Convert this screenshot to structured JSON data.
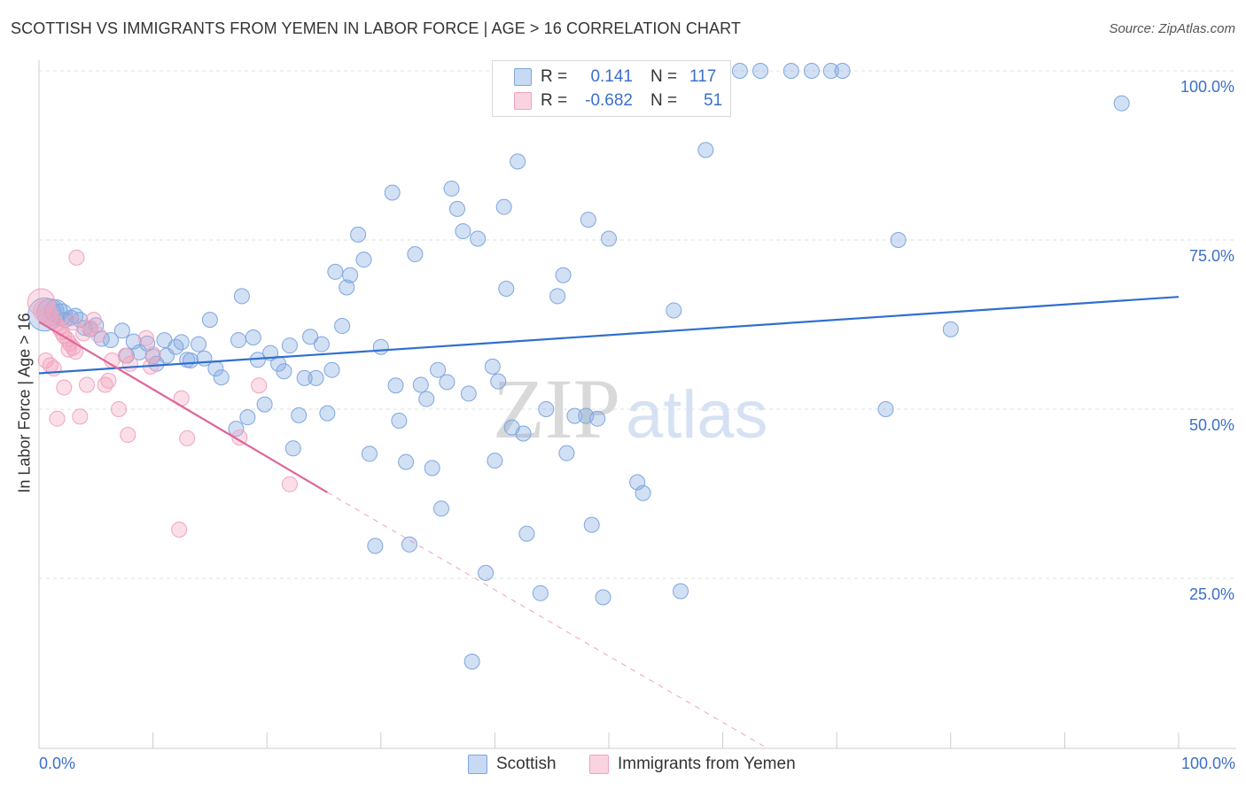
{
  "title": "SCOTTISH VS IMMIGRANTS FROM YEMEN IN LABOR FORCE | AGE > 16 CORRELATION CHART",
  "source": "Source: ZipAtlas.com",
  "watermark": {
    "zip": "ZIP",
    "atlas": "atlas"
  },
  "legend": {
    "rows": [
      {
        "r_label": "R =",
        "r_value": "0.141",
        "n_label": "N =",
        "n_value": "117"
      },
      {
        "r_label": "R =",
        "r_value": "-0.682",
        "n_label": "N =",
        "n_value": "51"
      }
    ]
  },
  "bottom_legend": [
    "Scottish",
    "Immigrants from Yemen"
  ],
  "chart_data": {
    "type": "scatter",
    "title": "SCOTTISH VS IMMIGRANTS FROM YEMEN IN LABOR FORCE | AGE > 16 CORRELATION CHART",
    "xlabel": "",
    "ylabel": "In Labor Force | Age > 16",
    "xlim": [
      0,
      100
    ],
    "ylim": [
      0,
      105
    ],
    "x_tick_labels": [
      "0.0%",
      "100.0%"
    ],
    "y_ticks": [
      25,
      50,
      75,
      100
    ],
    "y_tick_labels": [
      "25.0%",
      "50.0%",
      "75.0%",
      "100.0%"
    ],
    "grid": true,
    "legend_position": "top-center",
    "colors": {
      "scottish": "#7ea6e0",
      "scottish_line": "#2f6fcf",
      "yemen": "#f2a3bd",
      "yemen_line": "#e0659a",
      "tick_text": "#3b6fc9"
    },
    "series": [
      {
        "name": "Scottish",
        "r": 0.141,
        "n": 117,
        "trend": {
          "x": [
            0,
            100
          ],
          "y": [
            55.3,
            66.6
          ]
        },
        "points": [
          [
            0.5,
            64,
            2.2
          ],
          [
            1,
            64.3,
            1.8
          ],
          [
            1.5,
            64.5,
            1.5
          ],
          [
            2,
            64,
            1.4
          ],
          [
            2.3,
            63.2,
            1
          ],
          [
            2.8,
            63.5,
            1
          ],
          [
            3.2,
            63.8,
            1
          ],
          [
            3.6,
            63.2,
            1
          ],
          [
            4,
            62,
            1
          ],
          [
            4.5,
            61.8,
            1
          ],
          [
            5,
            62.4,
            1
          ],
          [
            5.5,
            60.4,
            1
          ],
          [
            6.3,
            60.2,
            1
          ],
          [
            7.3,
            61.6,
            1
          ],
          [
            7.7,
            57.9,
            1
          ],
          [
            8.3,
            60.0,
            1
          ],
          [
            8.8,
            58.4,
            1
          ],
          [
            9.5,
            59.7,
            1
          ],
          [
            10,
            57.8,
            1
          ],
          [
            10.3,
            56.7,
            1
          ],
          [
            11,
            60.2,
            1
          ],
          [
            11.2,
            57.9,
            1
          ],
          [
            12,
            59.2,
            1
          ],
          [
            12.5,
            59.9,
            1
          ],
          [
            13,
            57.3,
            1
          ],
          [
            13.3,
            57.2,
            1
          ],
          [
            14,
            59.6,
            1
          ],
          [
            14.5,
            57.5,
            1
          ],
          [
            15,
            63.2,
            1
          ],
          [
            15.5,
            56.0,
            1
          ],
          [
            16,
            54.7,
            1
          ],
          [
            17.3,
            47.1,
            1
          ],
          [
            17.5,
            60.2,
            1
          ],
          [
            17.8,
            66.7,
            1
          ],
          [
            18.3,
            48.8,
            1
          ],
          [
            18.8,
            60.6,
            1
          ],
          [
            19.2,
            57.3,
            1
          ],
          [
            19.8,
            50.7,
            1
          ],
          [
            20.3,
            58.3,
            1
          ],
          [
            21,
            56.7,
            1
          ],
          [
            21.5,
            55.6,
            1
          ],
          [
            22,
            59.4,
            1
          ],
          [
            22.3,
            44.2,
            1
          ],
          [
            22.8,
            49.1,
            1
          ],
          [
            23.3,
            54.6,
            1
          ],
          [
            23.8,
            60.7,
            1
          ],
          [
            24.3,
            54.6,
            1
          ],
          [
            24.8,
            59.6,
            1
          ],
          [
            25.3,
            49.4,
            1
          ],
          [
            25.7,
            55.8,
            1
          ],
          [
            26,
            70.3,
            1
          ],
          [
            26.6,
            62.3,
            1
          ],
          [
            27,
            68.0,
            1
          ],
          [
            27.3,
            69.8,
            1
          ],
          [
            28,
            75.8,
            1
          ],
          [
            28.5,
            72.1,
            1
          ],
          [
            29,
            43.4,
            1
          ],
          [
            29.5,
            29.8,
            1
          ],
          [
            30,
            59.2,
            1
          ],
          [
            31,
            82.0,
            1
          ],
          [
            31.3,
            53.5,
            1
          ],
          [
            31.6,
            48.3,
            1
          ],
          [
            32.2,
            42.2,
            1
          ],
          [
            32.5,
            30.0,
            1
          ],
          [
            33,
            72.9,
            1
          ],
          [
            33.5,
            53.6,
            1
          ],
          [
            34,
            51.5,
            1
          ],
          [
            34.5,
            41.3,
            1
          ],
          [
            35,
            55.8,
            1
          ],
          [
            35.3,
            35.3,
            1
          ],
          [
            35.8,
            54.0,
            1
          ],
          [
            36.2,
            82.6,
            1
          ],
          [
            36.7,
            79.6,
            1
          ],
          [
            37.2,
            76.3,
            1
          ],
          [
            37.7,
            52.3,
            1
          ],
          [
            38,
            12.7,
            1
          ],
          [
            38.5,
            75.2,
            1
          ],
          [
            39.2,
            25.8,
            1
          ],
          [
            39.8,
            56.3,
            1
          ],
          [
            40,
            42.4,
            1
          ],
          [
            40.3,
            54.1,
            1
          ],
          [
            40.8,
            79.9,
            1
          ],
          [
            41,
            67.8,
            1
          ],
          [
            41.5,
            47.3,
            1
          ],
          [
            42,
            86.6,
            1
          ],
          [
            42.5,
            46.4,
            1
          ],
          [
            42.8,
            31.6,
            1
          ],
          [
            44,
            22.8,
            1
          ],
          [
            44.5,
            50.0,
            1
          ],
          [
            45.5,
            66.7,
            1
          ],
          [
            46,
            69.8,
            1
          ],
          [
            46.3,
            43.5,
            1
          ],
          [
            47,
            49.0,
            1
          ],
          [
            48,
            49.0,
            1
          ],
          [
            48.2,
            78.0,
            1
          ],
          [
            48.5,
            32.9,
            1
          ],
          [
            49,
            48.6,
            1
          ],
          [
            49.5,
            22.2,
            1
          ],
          [
            50,
            75.2,
            1
          ],
          [
            52.5,
            39.2,
            1
          ],
          [
            53,
            37.6,
            1
          ],
          [
            53.8,
            100.0,
            1
          ],
          [
            55.7,
            64.6,
            1
          ],
          [
            56.3,
            23.1,
            1
          ],
          [
            58.5,
            88.3,
            1
          ],
          [
            61.5,
            100.0,
            1
          ],
          [
            63.3,
            100.0,
            1
          ],
          [
            66,
            100.0,
            1
          ],
          [
            67.8,
            100.0,
            1
          ],
          [
            69.5,
            100.0,
            1
          ],
          [
            70.5,
            100.0,
            1
          ],
          [
            74.3,
            50.0,
            1
          ],
          [
            75.4,
            75.0,
            1
          ],
          [
            80,
            61.8,
            1
          ],
          [
            95,
            95.2,
            1
          ]
        ]
      },
      {
        "name": "Immigrants from Yemen",
        "r": -0.682,
        "n": 51,
        "trend": {
          "x": [
            0,
            25.3
          ],
          "y": [
            62.9,
            37.7
          ],
          "dashed_to": {
            "x": 63.8,
            "y": 0
          }
        },
        "points": [
          [
            0.2,
            65.8,
            1.8
          ],
          [
            0.5,
            64.5,
            1.5
          ],
          [
            0.8,
            63.8,
            1.3
          ],
          [
            1.2,
            63.2,
            1.2
          ],
          [
            1.5,
            62.6,
            1
          ],
          [
            1.8,
            62.0,
            1
          ],
          [
            2,
            61.4,
            1
          ],
          [
            2.2,
            60.8,
            1
          ],
          [
            2.5,
            60.3,
            1
          ],
          [
            2.7,
            59.7,
            1
          ],
          [
            3,
            59.1,
            1
          ],
          [
            3.2,
            58.5,
            1
          ],
          [
            0.6,
            57.2,
            1
          ],
          [
            1,
            56.5,
            1
          ],
          [
            1.3,
            56.0,
            1
          ],
          [
            1.6,
            48.6,
            1
          ],
          [
            2.2,
            53.2,
            1
          ],
          [
            2.6,
            58.8,
            1
          ],
          [
            3,
            62.8,
            1
          ],
          [
            3.3,
            72.4,
            1
          ],
          [
            3.6,
            48.9,
            1
          ],
          [
            3.9,
            61.2,
            1
          ],
          [
            4.2,
            53.6,
            1
          ],
          [
            4.5,
            62.0,
            1
          ],
          [
            4.8,
            63.2,
            1
          ],
          [
            5.2,
            61.0,
            1
          ],
          [
            5.8,
            53.6,
            1
          ],
          [
            6.1,
            54.2,
            1
          ],
          [
            6.4,
            57.2,
            1
          ],
          [
            7,
            50.0,
            1
          ],
          [
            7.6,
            57.9,
            1
          ],
          [
            7.8,
            46.2,
            1
          ],
          [
            8,
            56.7,
            1
          ],
          [
            9.4,
            60.5,
            1
          ],
          [
            9.8,
            56.3,
            1
          ],
          [
            10,
            58.1,
            1
          ],
          [
            12.3,
            32.2,
            1
          ],
          [
            12.5,
            51.6,
            1
          ],
          [
            13,
            45.7,
            1
          ],
          [
            17.6,
            45.8,
            1
          ],
          [
            19.3,
            53.5,
            1
          ],
          [
            22,
            38.9,
            1
          ]
        ]
      }
    ]
  }
}
